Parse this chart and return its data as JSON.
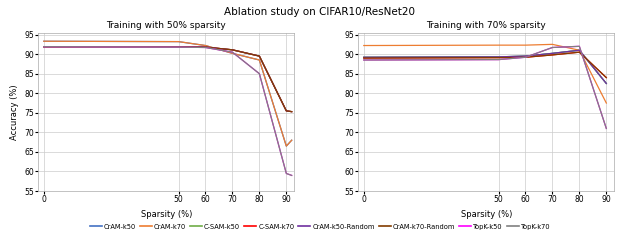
{
  "title": "Ablation study on CIFAR10/ResNet20",
  "subplot1_title": "Training with 50% sparsity",
  "subplot2_title": "Training with 70% sparsity",
  "xlabel": "Sparsity (%)",
  "ylabel": "Accuracy (%)",
  "left_x": [
    0,
    50,
    60,
    70,
    80,
    90,
    92
  ],
  "right_x": [
    0,
    50,
    60,
    70,
    80,
    90
  ],
  "left_data": {
    "CrAM-k50": [
      93.3,
      93.2,
      92.2,
      90.2,
      88.5,
      66.0,
      67.5
    ],
    "CrAM-k70": [
      93.3,
      93.2,
      92.2,
      90.2,
      88.5,
      66.0,
      67.5
    ],
    "C-SAM-k50": [
      91.9,
      91.9,
      91.8,
      91.0,
      89.5,
      75.5,
      75.5
    ],
    "C-SAM-k70": [
      91.9,
      91.9,
      91.8,
      91.0,
      89.5,
      75.5,
      75.5
    ],
    "CrAM-k50-Random": [
      91.9,
      91.9,
      91.8,
      91.0,
      89.5,
      75.5,
      75.5
    ],
    "CrAM-k70-Random": [
      91.9,
      91.9,
      91.8,
      91.0,
      89.5,
      75.5,
      75.5
    ],
    "TopK-k50": [
      91.9,
      91.9,
      91.7,
      90.5,
      85.0,
      59.5,
      59.0
    ],
    "TopK-k70": [
      91.9,
      91.9,
      91.7,
      90.5,
      85.0,
      59.5,
      59.0
    ]
  },
  "right_data": {
    "CrAM-k50": [
      89.3,
      89.4,
      89.5,
      90.2,
      90.8,
      82.5
    ],
    "CrAM-k70": [
      92.2,
      92.3,
      92.3,
      92.5,
      91.5,
      77.5
    ],
    "C-SAM-k50": [
      89.3,
      89.4,
      89.5,
      90.2,
      90.8,
      82.5
    ],
    "C-SAM-k70": [
      89.0,
      89.1,
      89.2,
      89.8,
      90.2,
      83.5
    ],
    "CrAM-k50-Random": [
      89.3,
      89.4,
      89.5,
      90.2,
      90.8,
      82.5
    ],
    "CrAM-k70-Random": [
      89.0,
      89.1,
      89.2,
      89.8,
      90.2,
      83.5
    ],
    "TopK-k50": [
      88.5,
      88.6,
      89.0,
      91.5,
      92.0,
      71.0
    ],
    "TopK-k70": [
      88.5,
      88.6,
      89.0,
      91.5,
      92.0,
      71.0
    ]
  },
  "colors": {
    "CrAM-k50": "#4472c4",
    "CrAM-k70": "#ed7d31",
    "C-SAM-k50": "#70ad47",
    "C-SAM-k70": "#ff0000",
    "CrAM-k50-Random": "#7030a0",
    "CrAM-k70-Random": "#833c00",
    "TopK-k50": "#ff00ff",
    "TopK-k70": "#808080"
  },
  "bg_color": "#f0f0f0"
}
